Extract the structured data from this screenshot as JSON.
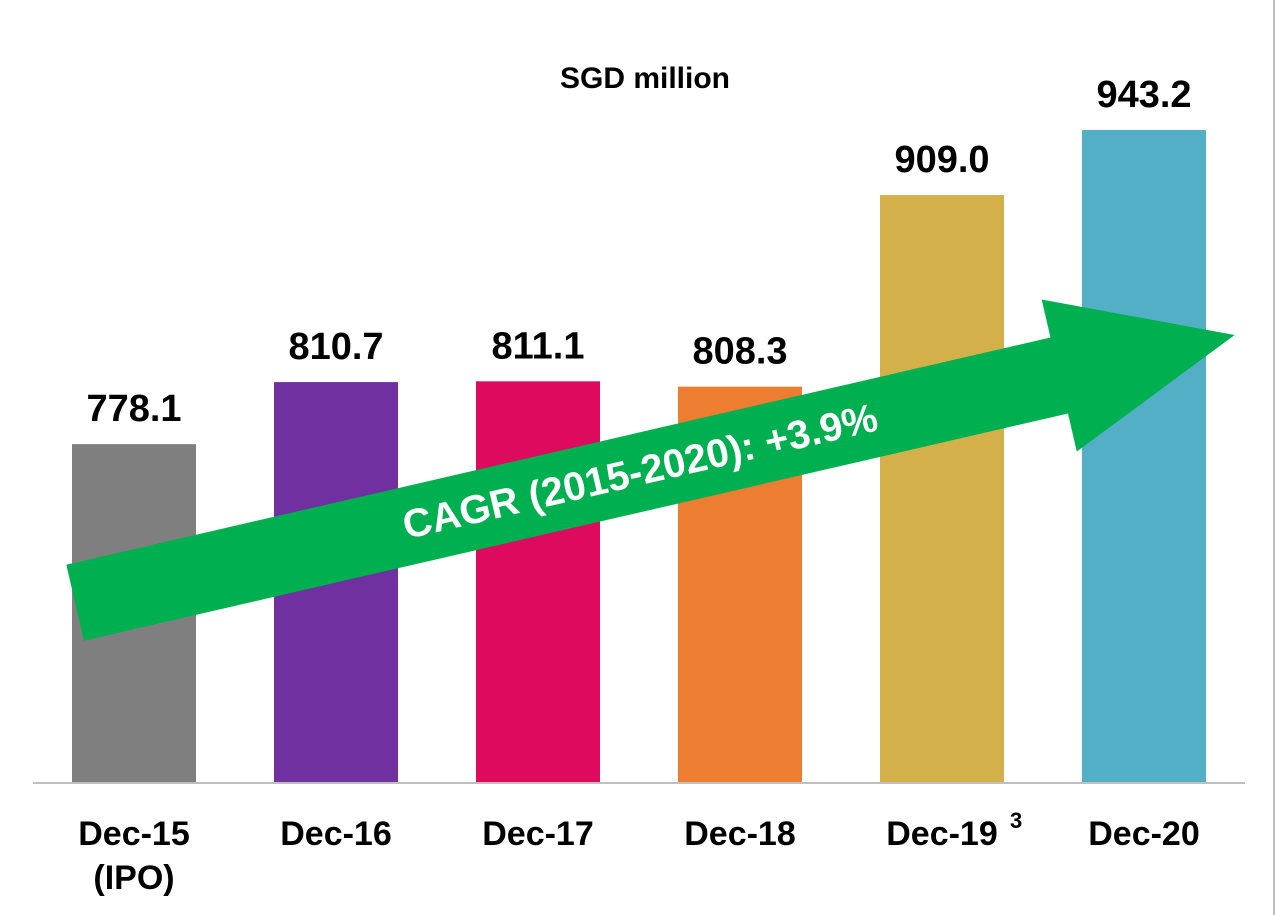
{
  "chart_data": {
    "type": "bar",
    "title": "SGD million",
    "categories": [
      "Dec-15\n(IPO)",
      "Dec-16",
      "Dec-17",
      "Dec-18",
      "Dec-19",
      "Dec-20"
    ],
    "category_notes": [
      null,
      null,
      null,
      null,
      "3",
      null
    ],
    "values": [
      778.1,
      810.7,
      811.1,
      808.3,
      909.0,
      943.2
    ],
    "value_labels": [
      "778.1",
      "810.7",
      "811.1",
      "808.3",
      "909.0",
      "943.2"
    ],
    "colors": [
      "#7f7f7f",
      "#7030a0",
      "#dd0a5e",
      "#ed7d31",
      "#d4b04a",
      "#52afc6"
    ],
    "ylim": [
      600,
      960
    ],
    "annotation": "CAGR (2015-2020): +3.9%"
  }
}
